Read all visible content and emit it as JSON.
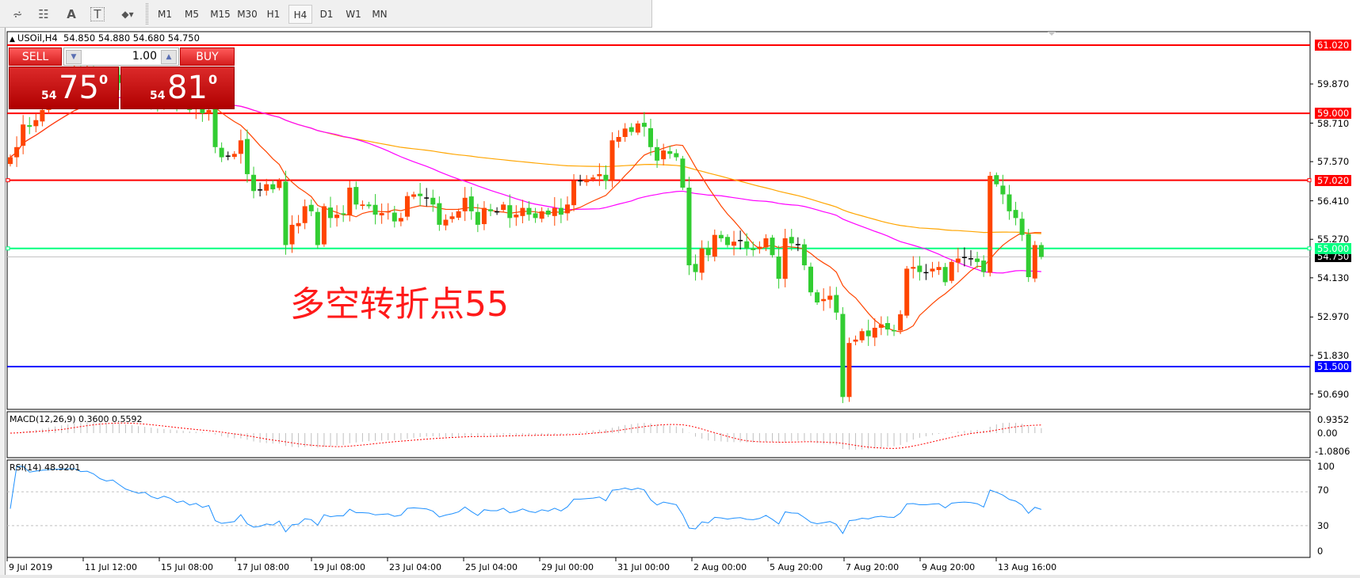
{
  "toolbar": {
    "tools": [
      {
        "icon": "elliott-wave-icon",
        "glyph": "⩫"
      },
      {
        "icon": "fibonacci-icon",
        "glyph": "☷"
      },
      {
        "icon": "text-icon",
        "glyph": "A"
      },
      {
        "icon": "text-label-icon",
        "glyph": "T"
      },
      {
        "icon": "arrows-dropdown-icon",
        "glyph": "◆▾"
      }
    ],
    "periods": [
      "M1",
      "M5",
      "M15",
      "M30",
      "H1",
      "H4",
      "D1",
      "W1",
      "MN"
    ],
    "active_period": "H4"
  },
  "chart": {
    "header": "USOil,H4  54.850 54.880 54.680 54.750",
    "annotation": "多空转折点55",
    "annotation_color": "#ff1a1a"
  },
  "trade_panel": {
    "sell_label": "SELL",
    "buy_label": "BUY",
    "lot": "1.00",
    "sell_prefix": "54",
    "sell_main": "75",
    "sell_super": "0",
    "buy_prefix": "54",
    "buy_main": "81",
    "buy_super": "0"
  },
  "levels": [
    {
      "price": 61.02,
      "label": "61.020",
      "color": "#ff0000",
      "text_color": "#ffffff"
    },
    {
      "price": 59.0,
      "label": "59.000",
      "color": "#ff0000",
      "text_color": "#ffffff"
    },
    {
      "price": 57.02,
      "label": "57.020",
      "color": "#ff0000",
      "text_color": "#ffffff"
    },
    {
      "price": 55.0,
      "label": "55.000",
      "color": "#00ff7f",
      "text_color": "#ffffff"
    },
    {
      "price": 54.75,
      "label": "54.750",
      "color": "#000000",
      "text_color": "#ffffff",
      "is_bid": true
    },
    {
      "price": 51.5,
      "label": "51.500",
      "color": "#0000ff",
      "text_color": "#ffffff"
    }
  ],
  "price_axis": [
    {
      "price": 59.87,
      "label": "59.870"
    },
    {
      "price": 58.71,
      "label": "58.710"
    },
    {
      "price": 57.57,
      "label": "57.570"
    },
    {
      "price": 56.41,
      "label": "56.410"
    },
    {
      "price": 55.27,
      "label": "55.270"
    },
    {
      "price": 54.13,
      "label": "54.130"
    },
    {
      "price": 52.97,
      "label": "52.970"
    },
    {
      "price": 51.83,
      "label": "51.830"
    },
    {
      "price": 50.69,
      "label": "50.690"
    }
  ],
  "time_axis": [
    "9 Jul 2019",
    "11 Jul 12:00",
    "15 Jul 08:00",
    "17 Jul 08:00",
    "19 Jul 08:00",
    "23 Jul 04:00",
    "25 Jul 04:00",
    "29 Jul 00:00",
    "31 Jul 00:00",
    "2 Aug 00:00",
    "5 Aug 20:00",
    "7 Aug 20:00",
    "9 Aug 20:00",
    "13 Aug 16:00"
  ],
  "macd": {
    "label": "MACD(12,26,9) 0.3600 0.5592",
    "axis": [
      "0.9352",
      "0.00",
      "-1.0806"
    ]
  },
  "rsi": {
    "label": "RSI(14) 48.9201",
    "axis": [
      "100",
      "70",
      "30",
      "0"
    ]
  },
  "colors": {
    "bull": "#ff4500",
    "bear": "#32cd32",
    "ma_fast": "#ff4500",
    "ma_mid": "#ff00ff",
    "ma_slow": "#ffa500",
    "rsi": "#1e90ff",
    "macd_hist": "#c0c0c0",
    "macd_signal": "#ff0000"
  },
  "chart_data": {
    "type": "candlestick",
    "symbol": "USOil",
    "timeframe": "H4",
    "ylim": [
      50.3,
      61.3
    ],
    "closes": [
      57.7,
      58.0,
      58.67,
      58.6,
      58.8,
      59.1,
      59.4,
      59.6,
      59.8,
      60.0,
      60.2,
      60.1,
      60.3,
      60.2,
      60.0,
      59.9,
      60.1,
      59.9,
      59.7,
      59.6,
      59.5,
      59.6,
      59.4,
      59.3,
      59.5,
      59.4,
      59.2,
      59.3,
      59.1,
      59.2,
      59.0,
      59.1,
      58.0,
      57.7,
      57.75,
      57.8,
      58.2,
      57.2,
      56.7,
      56.75,
      56.9,
      56.75,
      57.0,
      55.1,
      55.7,
      55.75,
      56.25,
      56.1,
      55.1,
      56.25,
      55.9,
      56.0,
      56.0,
      56.8,
      56.3,
      56.3,
      56.25,
      56.0,
      56.05,
      56.1,
      55.8,
      55.9,
      56.55,
      56.6,
      56.55,
      56.5,
      56.3,
      55.7,
      55.85,
      55.95,
      56.1,
      56.5,
      56.1,
      55.7,
      56.2,
      56.1,
      56.1,
      56.3,
      55.9,
      56.0,
      56.2,
      56.0,
      55.9,
      56.1,
      56.0,
      56.2,
      56.0,
      56.3,
      57.0,
      57.0,
      57.05,
      57.1,
      57.2,
      57.0,
      58.2,
      58.3,
      58.55,
      58.45,
      58.7,
      58.6,
      58.0,
      57.6,
      57.9,
      57.8,
      57.7,
      56.8,
      54.5,
      54.3,
      55.0,
      54.8,
      55.4,
      55.3,
      55.1,
      55.2,
      55.25,
      55.0,
      54.95,
      55.05,
      55.3,
      54.8,
      54.1,
      55.3,
      55.15,
      55.1,
      54.5,
      53.7,
      53.4,
      53.5,
      53.6,
      53.1,
      50.6,
      52.2,
      52.3,
      52.55,
      52.4,
      52.65,
      52.75,
      52.6,
      52.55,
      53.05,
      54.4,
      54.45,
      54.3,
      54.3,
      54.4,
      54.45,
      54.0,
      54.6,
      54.7,
      54.75,
      54.7,
      54.6,
      54.3,
      57.15,
      56.9,
      56.6,
      56.1,
      55.9,
      55.4,
      54.15,
      55.1,
      54.75
    ]
  }
}
